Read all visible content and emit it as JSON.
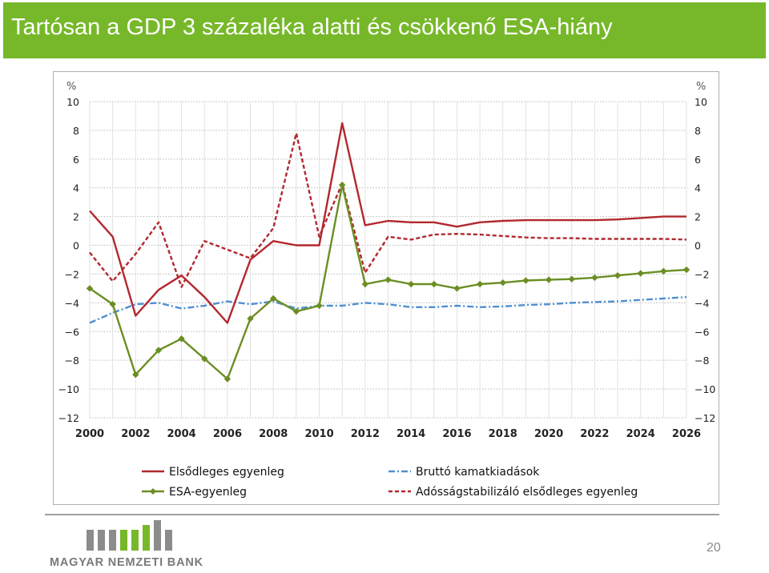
{
  "page": {
    "title": "Tartósan a GDP 3 százaléka alatti és csökkenő ESA-hiány",
    "page_number": "20",
    "logo_text": "MAGYAR NEMZETI BANK",
    "colors": {
      "title_bg": "#77b82a",
      "primary": "#b2282e",
      "esa": "#6b8e23",
      "interest": "#4f8fcf",
      "debt_stab": "#b2282e"
    }
  },
  "chart_data": {
    "type": "line",
    "title": "",
    "xlabel": "",
    "ylabel": "%",
    "ylabel_right": "%",
    "ylim": [
      -12,
      10
    ],
    "xlim": [
      2000,
      2026
    ],
    "yticks": [
      10,
      8,
      6,
      4,
      2,
      0,
      -2,
      -4,
      -6,
      -8,
      -10,
      -12
    ],
    "xticks": [
      2000,
      2002,
      2004,
      2006,
      2008,
      2010,
      2012,
      2014,
      2016,
      2018,
      2020,
      2022,
      2024,
      2026
    ],
    "grid": true,
    "legend_position": "bottom",
    "x": [
      2000,
      2001,
      2002,
      2003,
      2004,
      2005,
      2006,
      2007,
      2008,
      2009,
      2010,
      2011,
      2012,
      2013,
      2014,
      2015,
      2016,
      2017,
      2018,
      2019,
      2020,
      2021,
      2022,
      2023,
      2024,
      2025,
      2026
    ],
    "series": [
      {
        "name": "Elsődleges egyenleg",
        "style": "solid",
        "color": "#b2282e",
        "markers": false,
        "values": [
          2.4,
          0.6,
          -4.9,
          -3.1,
          -2.1,
          -3.6,
          -5.4,
          -1.0,
          0.3,
          0.0,
          0.0,
          8.5,
          1.4,
          1.7,
          1.6,
          1.6,
          1.3,
          1.6,
          1.7,
          1.75,
          1.75,
          1.75,
          1.75,
          1.8,
          1.9,
          2.0,
          2.0
        ]
      },
      {
        "name": "ESA-egyenleg",
        "style": "solid",
        "color": "#6b8e23",
        "markers": true,
        "values": [
          -3.0,
          -4.1,
          -9.0,
          -7.3,
          -6.5,
          -7.9,
          -9.3,
          -5.1,
          -3.7,
          -4.6,
          -4.2,
          4.2,
          -2.7,
          -2.4,
          -2.7,
          -2.7,
          -3.0,
          -2.7,
          -2.6,
          -2.45,
          -2.4,
          -2.35,
          -2.25,
          -2.1,
          -1.95,
          -1.8,
          -1.7
        ]
      },
      {
        "name": "Bruttó kamatkiadások",
        "style": "dashdot",
        "color": "#4f8fcf",
        "markers": false,
        "values": [
          -5.4,
          -4.7,
          -4.1,
          -4.0,
          -4.4,
          -4.2,
          -3.9,
          -4.1,
          -3.9,
          -4.4,
          -4.2,
          -4.2,
          -4.0,
          -4.1,
          -4.3,
          -4.3,
          -4.2,
          -4.3,
          -4.25,
          -4.15,
          -4.1,
          -4.0,
          -3.95,
          -3.9,
          -3.8,
          -3.7,
          -3.6
        ]
      },
      {
        "name": "Adósságstabilizáló elsődleges egyenleg",
        "style": "dashed",
        "color": "#b2282e",
        "markers": false,
        "values": [
          -0.5,
          -2.5,
          -0.6,
          1.6,
          -2.9,
          0.3,
          -0.3,
          -0.9,
          1.2,
          7.8,
          0.6,
          4.3,
          -1.9,
          0.6,
          0.4,
          0.75,
          0.8,
          0.75,
          0.65,
          0.55,
          0.5,
          0.5,
          0.45,
          0.45,
          0.45,
          0.45,
          0.4
        ]
      }
    ]
  }
}
